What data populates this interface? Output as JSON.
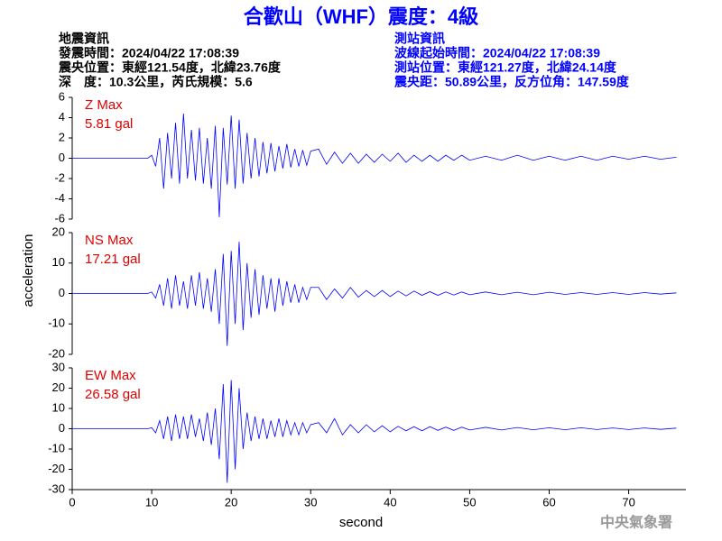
{
  "header": {
    "title": "合歡山（WHF）震度：4級",
    "left": [
      "地震資訊",
      "發震時間：2024/04/22 17:08:39",
      "震央位置：東經121.54度，北緯23.76度",
      "深　度：10.3公里，芮氏規模：5.6"
    ],
    "right": [
      "測站資訊",
      "波線起始時間：2024/04/22 17:08:39",
      "測站位置：東經121.27度，北緯24.14度",
      "震央距：50.89公里，反方位角：147.59度"
    ]
  },
  "ylabel": "acceleration",
  "xlabel": "second",
  "footer": "中央氣象署",
  "xlim": [
    0,
    77.2
  ],
  "xticks": [
    0,
    10,
    20,
    30,
    40,
    50,
    60,
    70
  ],
  "chart_data": [
    {
      "type": "line",
      "label": "Z Max",
      "max_label": "5.81 gal",
      "color": "#0000ff",
      "ylim": [
        -6,
        6
      ],
      "yticks": [
        -6,
        -4,
        -2,
        0,
        2,
        4,
        6
      ],
      "x": [
        0,
        9.5,
        10,
        10.5,
        11,
        11.5,
        12,
        12.5,
        13,
        13.5,
        14,
        14.5,
        15,
        15.5,
        16,
        16.5,
        17,
        17.5,
        18,
        18.5,
        19,
        19.5,
        20,
        20.5,
        21,
        21.5,
        22,
        22.5,
        23,
        23.5,
        24,
        24.5,
        25,
        25.5,
        26,
        26.5,
        27,
        27.5,
        28,
        28.5,
        29,
        29.5,
        30,
        31,
        32,
        33,
        34,
        35,
        36,
        37,
        38,
        39,
        40,
        41,
        42,
        43,
        44,
        45,
        46,
        47,
        48,
        49,
        50,
        52,
        54,
        56,
        58,
        60,
        62,
        64,
        66,
        68,
        70,
        72,
        74,
        76
      ],
      "values": [
        0,
        0,
        0.3,
        -0.8,
        2.0,
        -3.0,
        2.5,
        -2.0,
        3.5,
        -2.5,
        4.4,
        -2.0,
        2.8,
        -2.2,
        3.0,
        -2.5,
        2.0,
        -3.0,
        3.2,
        -5.81,
        3.0,
        -2.6,
        4.2,
        -3.0,
        3.8,
        -2.5,
        2.5,
        -2.0,
        2.0,
        -1.8,
        1.6,
        -1.5,
        1.5,
        -1.3,
        1.2,
        -1.0,
        1.4,
        -0.9,
        0.9,
        -0.8,
        0.8,
        -0.7,
        0.7,
        0.9,
        -0.6,
        0.6,
        -0.5,
        0.5,
        -0.5,
        0.4,
        -0.4,
        0.4,
        -0.3,
        0.5,
        -0.4,
        0.3,
        -0.3,
        0.3,
        -0.3,
        0.3,
        -0.2,
        0.3,
        -0.2,
        0.2,
        -0.2,
        0.3,
        -0.2,
        0.2,
        -0.2,
        0.2,
        -0.2,
        0.2,
        -0.1,
        0.2,
        -0.1,
        0.1
      ]
    },
    {
      "type": "line",
      "label": "NS Max",
      "max_label": "17.21 gal",
      "color": "#0000ff",
      "ylim": [
        -20,
        20
      ],
      "yticks": [
        -20,
        -10,
        0,
        10,
        20
      ],
      "x": [
        0,
        9.5,
        10,
        10.5,
        11,
        11.5,
        12,
        12.5,
        13,
        13.5,
        14,
        14.5,
        15,
        15.5,
        16,
        16.5,
        17,
        17.5,
        18,
        18.5,
        19,
        19.5,
        20,
        20.5,
        21,
        21.5,
        22,
        22.5,
        23,
        23.5,
        24,
        24.5,
        25,
        25.5,
        26,
        26.5,
        27,
        27.5,
        28,
        28.5,
        29,
        29.5,
        30,
        31,
        32,
        33,
        34,
        35,
        36,
        37,
        38,
        39,
        40,
        41,
        42,
        43,
        44,
        45,
        46,
        47,
        48,
        49,
        50,
        52,
        54,
        56,
        58,
        60,
        62,
        64,
        66,
        68,
        70,
        72,
        74,
        76
      ],
      "values": [
        0,
        0,
        0.5,
        -1.5,
        3,
        -4,
        5,
        -5,
        6,
        -4,
        4,
        -5,
        6,
        -4,
        7,
        -5,
        5,
        -6,
        8,
        -10,
        13,
        -17.21,
        14,
        -10,
        17,
        -12,
        10,
        -8,
        8,
        -7,
        6,
        -5,
        5,
        -6,
        5,
        -4,
        4,
        -3,
        3,
        -3,
        2,
        -2,
        2,
        2,
        -2,
        1.5,
        -1.5,
        2,
        -1.2,
        1,
        -1,
        1,
        -1,
        0.8,
        -0.8,
        0.8,
        -0.6,
        0.6,
        -0.6,
        0.5,
        -0.5,
        0.5,
        -0.4,
        0.5,
        -0.4,
        0.4,
        -0.4,
        0.4,
        -0.3,
        0.3,
        -0.3,
        0.3,
        -0.3,
        0.3,
        -0.2,
        0.2
      ]
    },
    {
      "type": "line",
      "label": "EW Max",
      "max_label": "26.58 gal",
      "color": "#0000ff",
      "ylim": [
        -30,
        30
      ],
      "yticks": [
        -30,
        -20,
        -10,
        0,
        10,
        20,
        30
      ],
      "x": [
        0,
        9.5,
        10,
        10.5,
        11,
        11.5,
        12,
        12.5,
        13,
        13.5,
        14,
        14.5,
        15,
        15.5,
        16,
        16.5,
        17,
        17.5,
        18,
        18.5,
        19,
        19.5,
        20,
        20.5,
        21,
        21.5,
        22,
        22.5,
        23,
        23.5,
        24,
        24.5,
        25,
        25.5,
        26,
        26.5,
        27,
        27.5,
        28,
        28.5,
        29,
        29.5,
        30,
        31,
        32,
        33,
        34,
        35,
        36,
        37,
        38,
        39,
        40,
        41,
        42,
        43,
        44,
        45,
        46,
        47,
        48,
        49,
        50,
        52,
        54,
        56,
        58,
        60,
        62,
        64,
        66,
        68,
        70,
        72,
        74,
        76
      ],
      "values": [
        0,
        0,
        0.5,
        -2,
        4,
        -5,
        6,
        -6,
        7,
        -5,
        6,
        -5,
        7,
        -4,
        5,
        -6,
        8,
        -8,
        10,
        -15,
        22,
        -26.58,
        24,
        -20,
        20,
        -10,
        8,
        -6,
        6,
        -5,
        5,
        -5,
        4,
        -4,
        5,
        -4,
        4,
        -3,
        3,
        -3,
        3,
        -2,
        2,
        3,
        -2,
        5,
        -3,
        2,
        -2,
        2,
        -1.5,
        1.5,
        -1.5,
        1.2,
        -1,
        1,
        -1,
        1,
        -0.8,
        0.8,
        -0.8,
        0.8,
        -0.6,
        0.7,
        -0.6,
        0.6,
        -0.5,
        0.5,
        -0.5,
        0.5,
        -0.4,
        0.4,
        -0.4,
        0.4,
        -0.3,
        0.3
      ]
    }
  ]
}
